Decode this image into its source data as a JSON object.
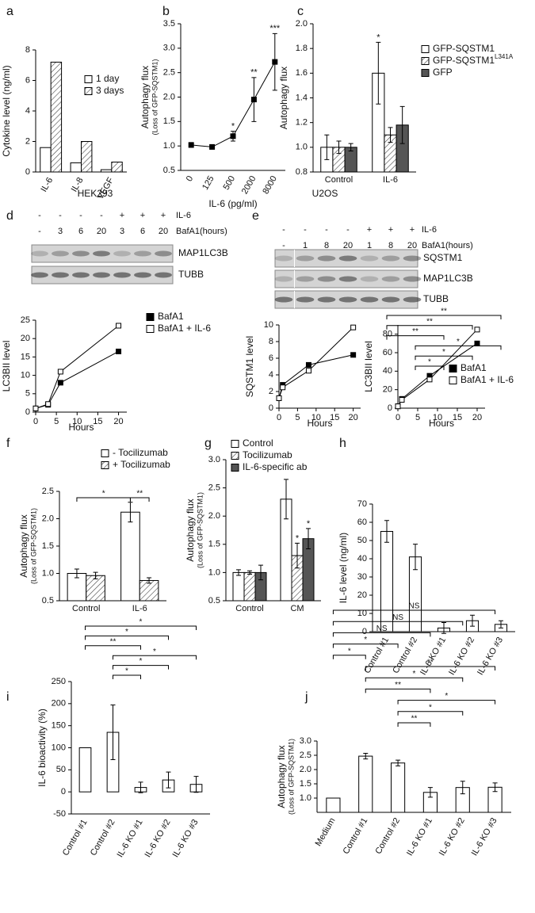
{
  "chart_data": [
    {
      "type": "bar",
      "panel": "a",
      "ylabel": "Cytokine level (ng/ml)",
      "categories": [
        "IL-6",
        "IL-8",
        "VEGF"
      ],
      "series": [
        {
          "name": "1 day",
          "color": "#ffffff",
          "values": [
            1.6,
            0.6,
            0.15
          ]
        },
        {
          "name": "3 days",
          "color": "#ffffff",
          "pattern": "hatch",
          "values": [
            7.2,
            2.0,
            0.65
          ]
        }
      ],
      "ylim": [
        0,
        8
      ],
      "yticks": [
        0,
        2,
        4,
        6,
        8
      ]
    },
    {
      "type": "line",
      "panel": "b",
      "ylabel": "Autophagy flux",
      "ylabel_note": "(Loss of GFP-SQSTM1)",
      "xlabel": "IL-6 (pg/ml)",
      "categories": [
        "0",
        "125",
        "500",
        "2000",
        "8000"
      ],
      "series": [
        {
          "color": "#000000",
          "values": [
            1.02,
            0.98,
            1.2,
            1.95,
            2.72
          ],
          "errors": [
            0.05,
            0.03,
            0.1,
            0.45,
            0.58
          ],
          "marks": [
            null,
            null,
            "*",
            "**",
            "***"
          ]
        }
      ],
      "ylim": [
        0.5,
        3.5
      ],
      "yticks": [
        0.5,
        {
          "value": 1,
          "label": "1.0"
        },
        1.5,
        {
          "value": 2,
          "label": "2.0"
        },
        2.5,
        {
          "value": 3,
          "label": "3.0"
        },
        3.5
      ]
    },
    {
      "type": "bar",
      "panel": "c",
      "ylabel": "Autophagy flux",
      "categories": [
        "Control",
        "IL-6"
      ],
      "series": [
        {
          "name": "GFP-SQSTM1",
          "color": "#ffffff",
          "values": [
            1.0,
            1.6
          ],
          "errors": [
            0.1,
            0.25
          ],
          "marks": [
            null,
            "*"
          ]
        },
        {
          "name": "GFP-SQSTM1",
          "superscript": "L341A",
          "color": "#ffffff",
          "pattern": "hatch",
          "values": [
            1.0,
            1.1
          ],
          "errors": [
            0.05,
            0.06
          ]
        },
        {
          "name": "GFP",
          "color": "#555555",
          "values": [
            1.0,
            1.18
          ],
          "errors": [
            0.03,
            0.15
          ]
        }
      ],
      "ylim": [
        0.8,
        2.0
      ],
      "yticks": [
        0.8,
        {
          "value": 1,
          "label": "1.0"
        },
        1.2,
        1.4,
        1.6,
        1.8,
        {
          "value": 2,
          "label": "2.0"
        }
      ]
    },
    {
      "type": "line",
      "ylabel": "LC3BII level",
      "xlabel": "Hours",
      "x": [
        0,
        3,
        6,
        20
      ],
      "series": [
        {
          "name": "BafA1",
          "color": "#000000",
          "values": [
            1,
            2,
            8,
            16.5
          ]
        },
        {
          "name": "BafA1 + IL-6",
          "color": "#ffffff",
          "values": [
            1,
            2.2,
            11,
            23.5
          ]
        }
      ],
      "xlim": [
        0,
        22
      ],
      "xticks": [
        0,
        5,
        10,
        15,
        20
      ],
      "ylim": [
        0,
        25
      ],
      "yticks": [
        0,
        5,
        10,
        15,
        20,
        25
      ]
    },
    {
      "type": "line",
      "ylabel": "SQSTM1 level",
      "xlabel": "Hours",
      "x": [
        0,
        1,
        8,
        20
      ],
      "series": [
        {
          "color": "#000000",
          "values": [
            1.2,
            2.8,
            5.2,
            6.4
          ]
        },
        {
          "color": "#ffffff",
          "values": [
            1.2,
            2.5,
            4.5,
            9.7
          ]
        }
      ],
      "xlim": [
        0,
        22
      ],
      "xticks": [
        0,
        5,
        10,
        15,
        20
      ],
      "ylim": [
        0,
        10
      ],
      "yticks": [
        0,
        2,
        4,
        6,
        8,
        10
      ]
    },
    {
      "type": "line",
      "ylabel": "LC3BII level",
      "xlabel": "Hours",
      "x": [
        0,
        1,
        8,
        20
      ],
      "series": [
        {
          "name": "BafA1",
          "color": "#000000",
          "values": [
            2,
            10,
            35,
            70
          ]
        },
        {
          "name": "BafA1 + IL-6",
          "color": "#ffffff",
          "values": [
            2,
            9,
            31,
            85
          ]
        }
      ],
      "xlim": [
        0,
        22
      ],
      "xticks": [
        0,
        5,
        10,
        15,
        20
      ],
      "ylim": [
        0,
        90
      ],
      "yticks": [
        0,
        20,
        40,
        60,
        80
      ]
    },
    {
      "type": "bar",
      "panel": "f",
      "ylabel": "Autophagy flux",
      "ylabel_note": "(Loss of GFP-SQSTM1)",
      "categories": [
        "Control",
        "IL-6"
      ],
      "series": [
        {
          "name": "- Tocilizumab",
          "color": "#ffffff",
          "values": [
            1.0,
            2.12
          ],
          "errors": [
            0.08,
            0.18
          ]
        },
        {
          "name": "+ Tocilizumab",
          "color": "#ffffff",
          "pattern": "hatch",
          "values": [
            0.96,
            0.87
          ],
          "errors": [
            0.06,
            0.05
          ]
        }
      ],
      "brackets": [
        {
          "from": {
            "category": "Control",
            "series": "- Tocilizumab"
          },
          "to": {
            "category": "IL-6",
            "series": "- Tocilizumab"
          },
          "label": "*"
        },
        {
          "from": {
            "category": "IL-6",
            "series": "- Tocilizumab"
          },
          "to": {
            "category": "IL-6",
            "series": "+ Tocilizumab"
          },
          "label": "**"
        }
      ],
      "ylim": [
        0.5,
        2.5
      ],
      "yticks": [
        0.5,
        {
          "value": 1,
          "label": "1.0"
        },
        1.5,
        {
          "value": 2,
          "label": "2.0"
        },
        2.5
      ]
    },
    {
      "type": "bar",
      "panel": "g",
      "ylabel": "Autophagy flux",
      "ylabel_note": "(Loss of GFP-SQSTM1)",
      "categories": [
        "Control",
        "CM"
      ],
      "series": [
        {
          "name": "Control",
          "color": "#ffffff",
          "values": [
            1.0,
            2.3
          ],
          "errors": [
            0.05,
            0.35
          ]
        },
        {
          "name": "Tocilizumab",
          "color": "#ffffff",
          "pattern": "hatch",
          "values": [
            1.0,
            1.3
          ],
          "errors": [
            0.03,
            0.22
          ],
          "marks": [
            null,
            "*"
          ]
        },
        {
          "name": "IL-6-specific ab",
          "color": "#555555",
          "values": [
            1.0,
            1.6
          ],
          "errors": [
            0.13,
            0.18
          ],
          "marks": [
            null,
            "*"
          ]
        }
      ],
      "ylim": [
        0.5,
        3.0
      ],
      "yticks": [
        0.5,
        {
          "value": 1,
          "label": "1.0"
        },
        1.5,
        {
          "value": 2,
          "label": "2.0"
        },
        2.5,
        {
          "value": 3,
          "label": "3.0"
        }
      ]
    },
    {
      "type": "bar",
      "panel": "h",
      "ylabel": "IL-6 level (ng/ml)",
      "categories": [
        "Control #1",
        "Control #2",
        "IL-6 KO #1",
        "IL-6 KO #2",
        "IL-6 KO #3"
      ],
      "series": [
        {
          "color": "#ffffff",
          "values": [
            55,
            41,
            2,
            6,
            4
          ],
          "errors": [
            6,
            7,
            3,
            3,
            2
          ]
        }
      ],
      "brackets": [
        {
          "from": {
            "category": "Control #1"
          },
          "to": {
            "category": "IL-6 KO #3"
          },
          "label": "**"
        },
        {
          "from": {
            "category": "Control #1"
          },
          "to": {
            "category": "IL-6 KO #2"
          },
          "label": "**"
        },
        {
          "from": {
            "category": "Control #1"
          },
          "to": {
            "category": "IL-6 KO #1"
          },
          "label": "**"
        },
        {
          "from": {
            "category": "Control #2"
          },
          "to": {
            "category": "IL-6 KO #3"
          },
          "label": "*"
        },
        {
          "from": {
            "category": "Control #2"
          },
          "to": {
            "category": "IL-6 KO #2"
          },
          "label": "*"
        },
        {
          "from": {
            "category": "Control #2"
          },
          "to": {
            "category": "IL-6 KO #1"
          },
          "label": "*"
        }
      ],
      "ylim": [
        0,
        70
      ],
      "yticks": [
        0,
        10,
        20,
        30,
        40,
        50,
        60,
        70
      ]
    },
    {
      "type": "bar",
      "panel": "i",
      "ylabel": "IL-6 bioactivity (%)",
      "categories": [
        "Control #1",
        "Control #2",
        "IL-6 KO #1",
        "IL-6 KO #2",
        "IL-6 KO #3"
      ],
      "series": [
        {
          "color": "#ffffff",
          "values": [
            100,
            135,
            10,
            27,
            17
          ],
          "errors": [
            null,
            62,
            12,
            18,
            18
          ]
        }
      ],
      "brackets": [
        {
          "from": {
            "category": "Control #1"
          },
          "to": {
            "category": "IL-6 KO #3"
          },
          "label": "*"
        },
        {
          "from": {
            "category": "Control #1"
          },
          "to": {
            "category": "IL-6 KO #2"
          },
          "label": "*"
        },
        {
          "from": {
            "category": "Control #1"
          },
          "to": {
            "category": "IL-6 KO #1"
          },
          "label": "**"
        },
        {
          "from": {
            "category": "Control #2"
          },
          "to": {
            "category": "IL-6 KO #3"
          },
          "label": "*"
        },
        {
          "from": {
            "category": "Control #2"
          },
          "to": {
            "category": "IL-6 KO #2"
          },
          "label": "*"
        },
        {
          "from": {
            "category": "Control #2"
          },
          "to": {
            "category": "IL-6 KO #1"
          },
          "label": "*"
        }
      ],
      "ylim": [
        -50,
        250
      ],
      "yticks": [
        -50,
        0,
        50,
        100,
        150,
        200,
        250
      ]
    },
    {
      "type": "bar",
      "panel": "j",
      "ylabel": "Autophagy flux",
      "ylabel_note": "(Loss of GFP-SQSTM1)",
      "categories": [
        "Medium",
        "Control #1",
        "Control #2",
        "IL-6 KO #1",
        "IL-6 KO #2",
        "IL-6 KO #3"
      ],
      "series": [
        {
          "color": "#ffffff",
          "values": [
            1.0,
            2.47,
            2.23,
            1.2,
            1.37,
            1.38
          ],
          "errors": [
            null,
            0.1,
            0.1,
            0.17,
            0.22,
            0.15
          ]
        }
      ],
      "brackets": [
        {
          "from": {
            "category": "Medium"
          },
          "to": {
            "category": "IL-6 KO #3"
          },
          "label": "NS"
        },
        {
          "from": {
            "category": "Medium"
          },
          "to": {
            "category": "IL-6 KO #2"
          },
          "label": "NS"
        },
        {
          "from": {
            "category": "Medium"
          },
          "to": {
            "category": "IL-6 KO #1"
          },
          "label": "NS"
        },
        {
          "from": {
            "category": "Medium"
          },
          "to": {
            "category": "Control #2"
          },
          "label": "*"
        },
        {
          "from": {
            "category": "Medium"
          },
          "to": {
            "category": "Control #1"
          },
          "label": "*"
        },
        {
          "from": {
            "category": "Control #1"
          },
          "to": {
            "category": "IL-6 KO #3"
          },
          "label": "**"
        },
        {
          "from": {
            "category": "Control #1"
          },
          "to": {
            "category": "IL-6 KO #2"
          },
          "label": "*"
        },
        {
          "from": {
            "category": "Control #1"
          },
          "to": {
            "category": "IL-6 KO #1"
          },
          "label": "**"
        },
        {
          "from": {
            "category": "Control #2"
          },
          "to": {
            "category": "IL-6 KO #3"
          },
          "label": "*"
        },
        {
          "from": {
            "category": "Control #2"
          },
          "to": {
            "category": "IL-6 KO #2"
          },
          "label": "*"
        },
        {
          "from": {
            "category": "Control #2"
          },
          "to": {
            "category": "IL-6 KO #1"
          },
          "label": "**"
        }
      ],
      "ylim": [
        0.5,
        3.0
      ],
      "yticks": [
        {
          "value": 1,
          "label": "1.0"
        },
        1.5,
        {
          "value": 2,
          "label": "2.0"
        },
        2.5,
        {
          "value": 3,
          "label": "3.0"
        }
      ]
    }
  ],
  "blots": [
    {
      "panel": "d",
      "cell_line": "HEK293",
      "conditions": [
        {
          "label": "IL-6",
          "values": [
            "-",
            "-",
            "-",
            "-",
            "+",
            "+",
            "+"
          ]
        },
        {
          "label": "BafA1(hours)",
          "values": [
            "-",
            "3",
            "6",
            "20",
            "3",
            "6",
            "20"
          ]
        }
      ],
      "bands": [
        "MAP1LC3B",
        "TUBB"
      ]
    },
    {
      "panel": "e",
      "cell_line": "U2OS",
      "conditions": [
        {
          "label": "IL-6",
          "values": [
            "-",
            "-",
            "-",
            "-",
            "+",
            "+",
            "+"
          ]
        },
        {
          "label": "BafA1(hours)",
          "values": [
            "-",
            "1",
            "8",
            "20",
            "1",
            "8",
            "20"
          ]
        }
      ],
      "bands": [
        "SQSTM1",
        "MAP1LC3B",
        "TUBB"
      ]
    }
  ]
}
